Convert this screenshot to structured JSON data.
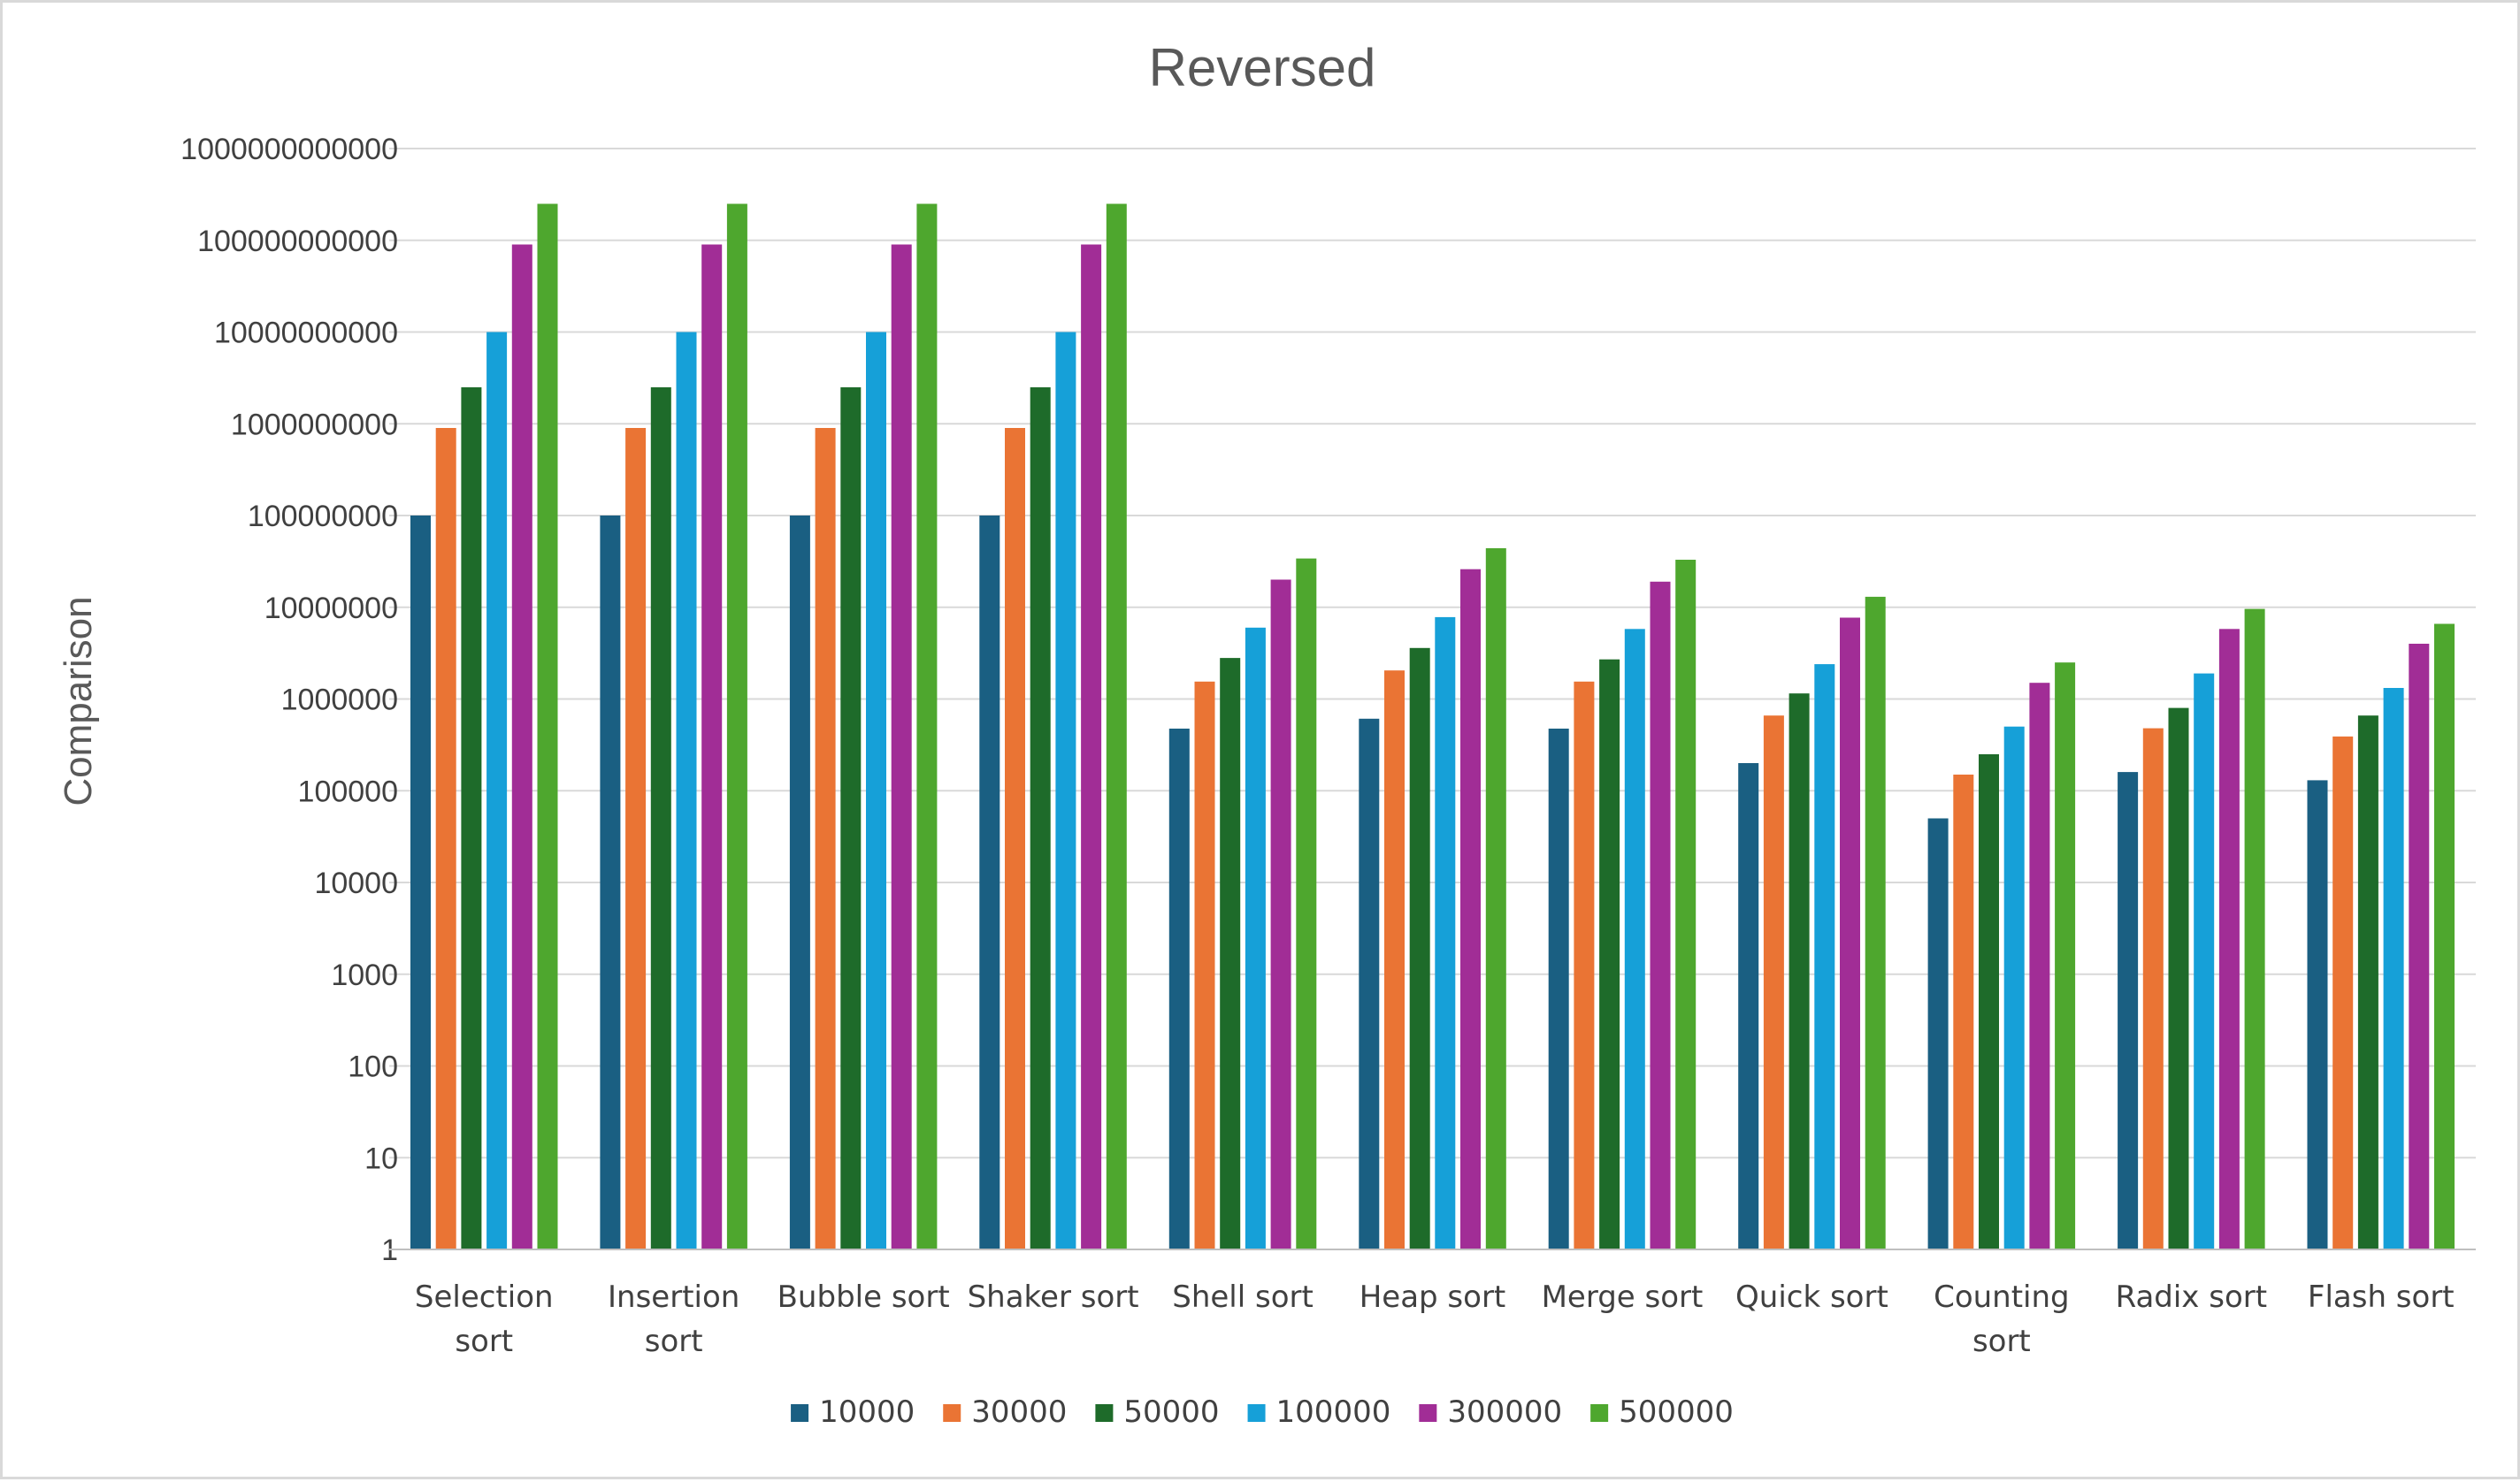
{
  "chart_data": {
    "type": "bar",
    "title": "Reversed",
    "xlabel": "",
    "ylabel": "Comparison",
    "yscale": "log",
    "ylim": [
      1,
      1000000000000
    ],
    "yticks": [
      "1",
      "10",
      "100",
      "1000",
      "10000",
      "100000",
      "1000000",
      "10000000",
      "100000000",
      "1000000000",
      "10000000000",
      "100000000000",
      "1000000000000"
    ],
    "grid": true,
    "legend_position": "bottom",
    "categories": [
      "Selection sort",
      "Insertion sort",
      "Bubble sort",
      "Shaker sort",
      "Shell sort",
      "Heap sort",
      "Merge sort",
      "Quick sort",
      "Counting sort",
      "Radix sort",
      "Flash sort"
    ],
    "series": [
      {
        "name": "10000",
        "color": "#1a5f82",
        "values": [
          100000000,
          100000000,
          100000000,
          100000000,
          475000,
          610000,
          475000,
          200000,
          50000,
          160000,
          130000
        ]
      },
      {
        "name": "30000",
        "color": "#ea7434",
        "values": [
          900000000,
          900000000,
          900000000,
          900000000,
          1550000,
          2050000,
          1550000,
          660000,
          150000,
          480000,
          390000
        ]
      },
      {
        "name": "50000",
        "color": "#1e6b2a",
        "values": [
          2500000000,
          2500000000,
          2500000000,
          2500000000,
          2800000,
          3600000,
          2700000,
          1150000,
          250000,
          800000,
          660000
        ]
      },
      {
        "name": "100000",
        "color": "#16a0d8",
        "values": [
          10000000000,
          10000000000,
          10000000000,
          10000000000,
          6000000,
          7800000,
          5800000,
          2400000,
          500000,
          1900000,
          1320000
        ]
      },
      {
        "name": "300000",
        "color": "#a12d96",
        "values": [
          90000000000,
          90000000000,
          90000000000,
          90000000000,
          20000000,
          26000000,
          19000000,
          7700000,
          1500000,
          5800000,
          4000000
        ]
      },
      {
        "name": "500000",
        "color": "#4ea72e",
        "values": [
          250000000000,
          250000000000,
          250000000000,
          250000000000,
          34000000,
          44000000,
          33000000,
          13000000,
          2500000,
          9600000,
          6600000
        ]
      }
    ]
  }
}
